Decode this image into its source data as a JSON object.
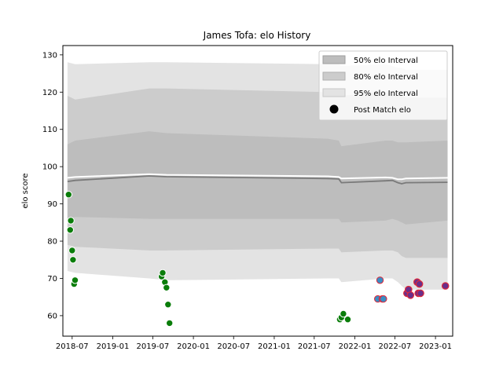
{
  "chart_data": {
    "type": "line",
    "title": "James Tofa: elo History",
    "xlabel": "",
    "ylabel": "elo score",
    "xlim": [
      "2018-05-20",
      "2023-03-20"
    ],
    "ylim": [
      54.5,
      132.5
    ],
    "x_ticks": [
      "2018-07",
      "2019-01",
      "2019-07",
      "2020-01",
      "2020-07",
      "2021-01",
      "2021-07",
      "2022-01",
      "2022-07",
      "2023-01"
    ],
    "y_ticks": [
      60,
      70,
      80,
      90,
      100,
      110,
      120,
      130
    ],
    "legend": {
      "position": "top-right",
      "entries": [
        "50% elo Interval",
        "80% elo Interval",
        "95% elo Interval",
        "Post Match elo"
      ]
    },
    "colors": {
      "band_50": "#bdbdbd",
      "band_80": "#cccccc",
      "band_95": "#e3e3e3",
      "mean_line": "#7a7a7a",
      "upper_line": "#ffffff",
      "point_fill_green": "#0a7d0a",
      "point_fill_blue": "#3a8ec4",
      "point_fill_purple": "#6a2f8a",
      "point_edge_white": "#ffffff",
      "point_edge_red": "#e0283a"
    },
    "band_x": [
      "2018-06-10",
      "2018-07-15",
      "2019-06-15",
      "2019-09-01",
      "2021-09-01",
      "2021-10-20",
      "2021-11-01",
      "2022-05-20",
      "2022-06-20",
      "2022-07-15",
      "2022-08-01",
      "2022-08-20",
      "2023-02-25"
    ],
    "series": [
      {
        "name": "95% elo Interval",
        "upper": [
          128,
          127.5,
          128,
          128,
          127.5,
          127.5,
          127,
          127.5,
          127,
          126.5,
          126.5,
          126,
          126
        ],
        "lower": [
          72,
          71.5,
          70,
          69.5,
          70,
          70,
          69,
          70,
          70,
          69,
          68,
          67,
          67
        ]
      },
      {
        "name": "80% elo Interval",
        "upper": [
          119,
          118,
          121,
          121,
          120,
          119.5,
          119,
          120,
          119.5,
          119,
          119,
          118.5,
          118.5
        ],
        "lower": [
          79,
          78.5,
          77.5,
          77.5,
          78,
          78,
          77,
          77.5,
          77.5,
          77,
          76,
          75.5,
          75.5
        ]
      },
      {
        "name": "50% elo Interval",
        "upper": [
          106,
          107,
          109.5,
          109,
          107.5,
          107,
          105.5,
          107,
          107,
          106.5,
          106.5,
          106.5,
          107
        ],
        "lower": [
          86,
          86.5,
          86,
          86,
          86,
          86,
          85,
          85.5,
          86,
          85.5,
          85,
          84.5,
          85.5
        ]
      },
      {
        "name": "upper line",
        "values": [
          97,
          97.2,
          98,
          97.8,
          97.4,
          97.2,
          96.8,
          97.1,
          97,
          96.6,
          96.6,
          96.8,
          97
        ]
      },
      {
        "name": "mean line",
        "values": [
          96,
          96.3,
          97.5,
          97.3,
          96.8,
          96.7,
          95.7,
          96.2,
          96.3,
          95.7,
          95.4,
          95.7,
          95.8
        ]
      },
      {
        "name": "Post Match elo",
        "points": [
          {
            "x": "2018-06-15",
            "y": 92.5,
            "group": "green"
          },
          {
            "x": "2018-06-22",
            "y": 83,
            "group": "green"
          },
          {
            "x": "2018-06-25",
            "y": 85.5,
            "group": "green"
          },
          {
            "x": "2018-07-01",
            "y": 77.5,
            "group": "green"
          },
          {
            "x": "2018-07-05",
            "y": 75,
            "group": "green"
          },
          {
            "x": "2018-07-10",
            "y": 68.5,
            "group": "green"
          },
          {
            "x": "2018-07-14",
            "y": 69.5,
            "group": "green"
          },
          {
            "x": "2019-08-10",
            "y": 70.5,
            "group": "green"
          },
          {
            "x": "2019-08-15",
            "y": 71.5,
            "group": "green"
          },
          {
            "x": "2019-08-25",
            "y": 69,
            "group": "green"
          },
          {
            "x": "2019-09-01",
            "y": 67.5,
            "group": "green"
          },
          {
            "x": "2019-09-08",
            "y": 63,
            "group": "green"
          },
          {
            "x": "2019-09-15",
            "y": 58,
            "group": "green"
          },
          {
            "x": "2021-10-25",
            "y": 59,
            "group": "green"
          },
          {
            "x": "2021-11-01",
            "y": 59.5,
            "group": "green"
          },
          {
            "x": "2021-11-10",
            "y": 60.5,
            "group": "green"
          },
          {
            "x": "2021-11-30",
            "y": 59,
            "group": "green"
          },
          {
            "x": "2022-04-15",
            "y": 64.5,
            "group": "blue"
          },
          {
            "x": "2022-04-25",
            "y": 69.5,
            "group": "blue"
          },
          {
            "x": "2022-05-05",
            "y": 64.5,
            "group": "blue"
          },
          {
            "x": "2022-05-10",
            "y": 64.5,
            "group": "blue"
          },
          {
            "x": "2022-08-25",
            "y": 66,
            "group": "purple"
          },
          {
            "x": "2022-09-01",
            "y": 67,
            "group": "purple"
          },
          {
            "x": "2022-09-10",
            "y": 65.5,
            "group": "purple"
          },
          {
            "x": "2022-10-10",
            "y": 69,
            "group": "purple"
          },
          {
            "x": "2022-10-15",
            "y": 66,
            "group": "purple"
          },
          {
            "x": "2022-10-20",
            "y": 68.5,
            "group": "purple"
          },
          {
            "x": "2022-10-25",
            "y": 66,
            "group": "purple"
          },
          {
            "x": "2023-02-15",
            "y": 68,
            "group": "purple"
          }
        ]
      }
    ]
  }
}
